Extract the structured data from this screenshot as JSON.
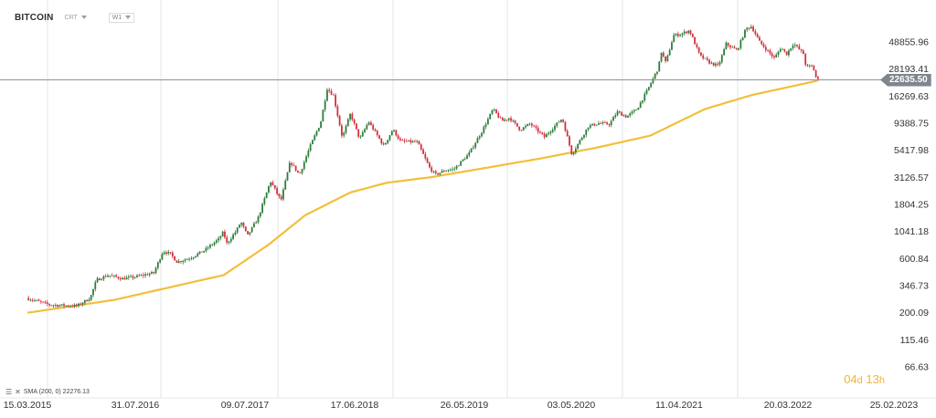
{
  "header": {
    "symbol": "BITCOIN",
    "chart_type": "CRT",
    "interval": "W1"
  },
  "indicator": {
    "label": "SMA (200, 0) 22276.13"
  },
  "countdown": {
    "days": "04",
    "days_unit": "d",
    "hours": "13",
    "hours_unit": "h"
  },
  "current_price": "22635.50",
  "colors": {
    "up_candle": "#2e7d3a",
    "down_candle": "#d5303d",
    "sma_line": "#f2bf3a",
    "price_line": "#8b949c",
    "grid": "#e2e4e7",
    "countdown": "#f0b43c",
    "price_label_bg": "#7e8790"
  },
  "chart_data": {
    "type": "candlestick",
    "scale": "log",
    "y_ticks": [
      "48855.96",
      "28193.41",
      "16269.63",
      "9388.75",
      "5417.98",
      "3126.57",
      "1804.25",
      "1041.18",
      "600.84",
      "346.73",
      "200.09",
      "115.46",
      "66.63"
    ],
    "x_ticks": [
      "15.03.2015",
      "31.07.2016",
      "09.07.2017",
      "17.06.2018",
      "26.05.2019",
      "03.05.2020",
      "11.04.2021",
      "20.03.2022",
      "25.02.2023"
    ],
    "price_anchors": [
      [
        "2015-03-15",
        270
      ],
      [
        "2015-06-01",
        235
      ],
      [
        "2015-08-15",
        230
      ],
      [
        "2015-09-01",
        230
      ],
      [
        "2015-10-15",
        270
      ],
      [
        "2015-11-05",
        390
      ],
      [
        "2015-12-15",
        430
      ],
      [
        "2016-01-31",
        400
      ],
      [
        "2016-03-15",
        415
      ],
      [
        "2016-05-15",
        450
      ],
      [
        "2016-06-15",
        700
      ],
      [
        "2016-07-10",
        660
      ],
      [
        "2016-08-01",
        560
      ],
      [
        "2016-09-15",
        610
      ],
      [
        "2016-11-01",
        710
      ],
      [
        "2016-12-20",
        900
      ],
      [
        "2017-01-05",
        1050
      ],
      [
        "2017-01-12",
        800
      ],
      [
        "2017-02-15",
        1050
      ],
      [
        "2017-03-03",
        1270
      ],
      [
        "2017-03-25",
        950
      ],
      [
        "2017-05-01",
        1400
      ],
      [
        "2017-06-10",
        2900
      ],
      [
        "2017-07-15",
        1950
      ],
      [
        "2017-08-15",
        4300
      ],
      [
        "2017-09-15",
        3300
      ],
      [
        "2017-10-20",
        5800
      ],
      [
        "2017-11-25",
        9500
      ],
      [
        "2017-12-17",
        19000
      ],
      [
        "2018-01-07",
        16500
      ],
      [
        "2018-02-06",
        7000
      ],
      [
        "2018-03-05",
        11400
      ],
      [
        "2018-04-05",
        6800
      ],
      [
        "2018-05-05",
        9700
      ],
      [
        "2018-06-25",
        5900
      ],
      [
        "2018-07-25",
        8300
      ],
      [
        "2018-08-20",
        6500
      ],
      [
        "2018-10-15",
        6400
      ],
      [
        "2018-11-25",
        3800
      ],
      [
        "2018-12-15",
        3300
      ],
      [
        "2019-01-15",
        3600
      ],
      [
        "2019-02-15",
        3700
      ],
      [
        "2019-04-05",
        5000
      ],
      [
        "2019-05-20",
        8000
      ],
      [
        "2019-06-26",
        12500
      ],
      [
        "2019-07-25",
        9800
      ],
      [
        "2019-08-20",
        10500
      ],
      [
        "2019-09-25",
        8200
      ],
      [
        "2019-10-28",
        9300
      ],
      [
        "2019-12-15",
        7100
      ],
      [
        "2020-02-13",
        10400
      ],
      [
        "2020-03-16",
        5000
      ],
      [
        "2020-05-10",
        8800
      ],
      [
        "2020-06-15",
        9400
      ],
      [
        "2020-07-20",
        9200
      ],
      [
        "2020-08-15",
        11800
      ],
      [
        "2020-09-15",
        10700
      ],
      [
        "2020-10-20",
        12500
      ],
      [
        "2020-11-25",
        18500
      ],
      [
        "2020-12-31",
        29000
      ],
      [
        "2021-01-10",
        40000
      ],
      [
        "2021-01-25",
        32000
      ],
      [
        "2021-02-20",
        56000
      ],
      [
        "2021-03-15",
        57000
      ],
      [
        "2021-04-14",
        62000
      ],
      [
        "2021-05-19",
        37000
      ],
      [
        "2021-06-22",
        32000
      ],
      [
        "2021-07-20",
        30000
      ],
      [
        "2021-08-15",
        47000
      ],
      [
        "2021-09-21",
        41000
      ],
      [
        "2021-10-20",
        64000
      ],
      [
        "2021-11-08",
        67000
      ],
      [
        "2021-12-05",
        49000
      ],
      [
        "2022-01-24",
        35000
      ],
      [
        "2022-02-15",
        44000
      ],
      [
        "2022-03-05",
        38000
      ],
      [
        "2022-03-29",
        47500
      ],
      [
        "2022-05-01",
        38500
      ],
      [
        "2022-05-10",
        29500
      ],
      [
        "2022-06-01",
        30000
      ],
      [
        "2022-06-15",
        22600
      ]
    ],
    "sma_anchors": [
      [
        "2015-03-15",
        200
      ],
      [
        "2016-01-01",
        260
      ],
      [
        "2017-01-01",
        430
      ],
      [
        "2017-06-01",
        800
      ],
      [
        "2017-10-01",
        1450
      ],
      [
        "2018-03-01",
        2300
      ],
      [
        "2018-07-01",
        2800
      ],
      [
        "2018-12-01",
        3150
      ],
      [
        "2019-06-01",
        3800
      ],
      [
        "2019-12-01",
        4600
      ],
      [
        "2020-06-01",
        5700
      ],
      [
        "2020-12-01",
        7300
      ],
      [
        "2021-06-01",
        12500
      ],
      [
        "2021-11-01",
        16500
      ],
      [
        "2022-06-15",
        22276.13
      ]
    ],
    "current_price": 22635.5
  }
}
